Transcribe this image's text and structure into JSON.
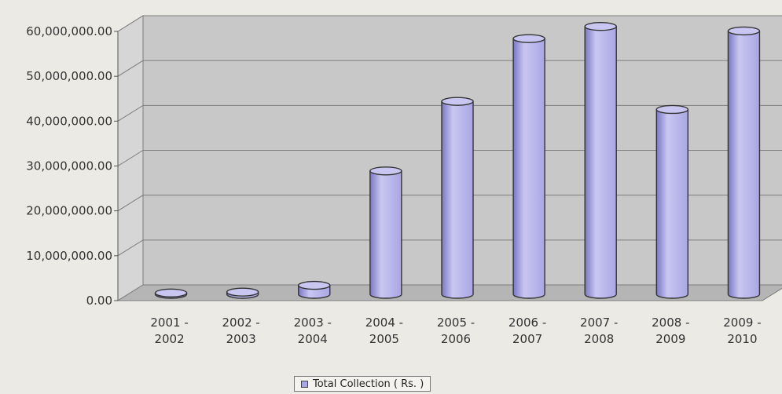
{
  "chart_data": {
    "type": "bar",
    "categories": [
      [
        "2001 -",
        "2002"
      ],
      [
        "2002 -",
        "2003"
      ],
      [
        "2003 -",
        "2004"
      ],
      [
        "2004 -",
        "2005"
      ],
      [
        "2005 -",
        "2006"
      ],
      [
        "2006 -",
        "2007"
      ],
      [
        "2007 -",
        "2008"
      ],
      [
        "2008 -",
        "2009"
      ],
      [
        "2009 -",
        "2010"
      ]
    ],
    "series": [
      {
        "name": "Total Collection ( Rs. )",
        "values": [
          300000,
          500000,
          2000000,
          27500000,
          43000000,
          57000000,
          59700000,
          41200000,
          58700000
        ]
      }
    ],
    "y_ticks": [
      "0.00",
      "10,000,000.00",
      "20,000,000.00",
      "30,000,000.00",
      "40,000,000.00",
      "50,000,000.00",
      "60,000,000.00"
    ],
    "ylim": [
      0,
      60000000
    ],
    "grid": true,
    "legend_position": "bottom",
    "colors": {
      "bar": "#a9a6e4",
      "bar_light": "#c9c7f1",
      "bar_dark": "#7b77c4",
      "wall": "#c8c8c8",
      "floor": "#b5b5b5",
      "grid": "#7d7d7d"
    }
  }
}
